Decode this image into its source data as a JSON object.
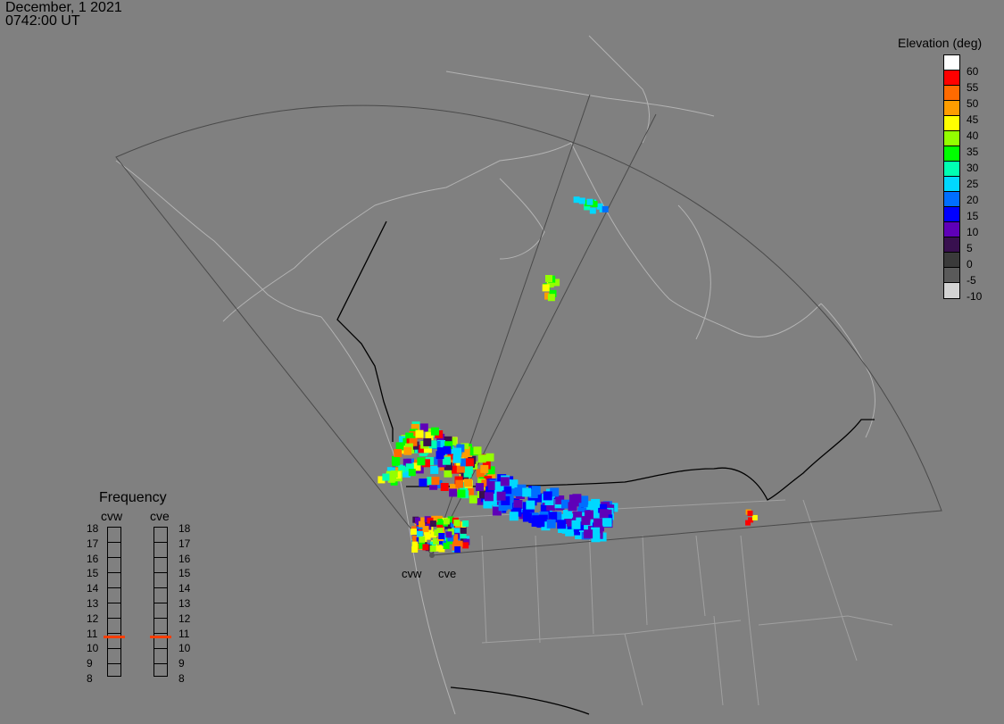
{
  "header": {
    "date": "December, 1 2021",
    "time": "0742:00 UT"
  },
  "elevation_legend": {
    "title": "Elevation (deg)",
    "levels": [
      {
        "label": "60",
        "color": "#ffffff"
      },
      {
        "label": "55",
        "color": "#ff0000"
      },
      {
        "label": "50",
        "color": "#ff6a00"
      },
      {
        "label": "45",
        "color": "#ff9d00"
      },
      {
        "label": "40",
        "color": "#ffff00"
      },
      {
        "label": "35",
        "color": "#93ff00"
      },
      {
        "label": "30",
        "color": "#00ff00"
      },
      {
        "label": "25",
        "color": "#00ffb2"
      },
      {
        "label": "20",
        "color": "#00d8ff"
      },
      {
        "label": "15",
        "color": "#006eff"
      },
      {
        "label": "10",
        "color": "#0000ff"
      },
      {
        "label": "5",
        "color": "#5f00b8"
      },
      {
        "label": "0",
        "color": "#38104f"
      },
      {
        "label": "-5",
        "color": "#3a3a3a"
      },
      {
        "label": "-10",
        "color": "#5a5a5a"
      },
      {
        "label": "",
        "color": "#d3d3d3"
      }
    ]
  },
  "frequency_legend": {
    "title": "Frequency",
    "radars": [
      "cvw",
      "cve"
    ],
    "scale": [
      "18",
      "17",
      "16",
      "15",
      "14",
      "13",
      "12",
      "11",
      "10",
      "9",
      "8"
    ],
    "current_mhz": {
      "cvw": 10.7,
      "cve": 10.7
    },
    "marker_color": "#ff3d00"
  },
  "radar_sites": [
    {
      "name": "cvw"
    },
    {
      "name": "cve"
    }
  ]
}
